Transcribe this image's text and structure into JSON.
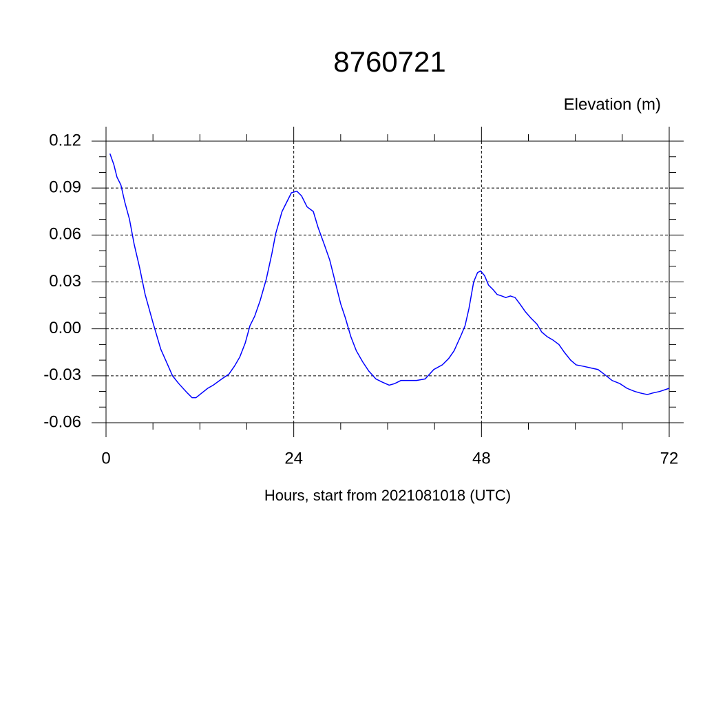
{
  "chart_data": {
    "type": "line",
    "title": "8760721",
    "y_label": "Elevation (m)",
    "x_label": "Hours, start from 2021081018 (UTC)",
    "xlim": [
      0,
      72
    ],
    "ylim": [
      -0.06,
      0.12
    ],
    "xticks": [
      0,
      24,
      48,
      72
    ],
    "yticks": [
      0.12,
      0.09,
      0.06,
      0.03,
      {
        "value": 0,
        "label": "0.00"
      },
      -0.03,
      -0.06
    ],
    "xminor_ticks": [
      6,
      12,
      18,
      30,
      36,
      42,
      54,
      60,
      66
    ],
    "yminor_ticks": [
      0.11,
      0.1,
      0.08,
      0.07,
      0.05,
      0.04,
      0.02,
      0.01,
      -0.01,
      -0.02,
      -0.04,
      -0.05
    ],
    "grid": true,
    "series": [
      {
        "color": "#0000ff",
        "x": [
          0.5,
          1,
          1.4,
          1.9,
          2.4,
          3,
          3.6,
          4.3,
          5,
          6,
          7,
          7.8,
          8.5,
          9.3,
          10.4,
          11,
          11.5,
          12,
          13,
          13.7,
          14.8,
          15.7,
          16.4,
          17.1,
          17.8,
          18.4,
          19,
          19.7,
          20.5,
          21.2,
          21.7,
          22.5,
          23,
          23.7,
          24.4,
          25,
          25.7,
          26.5,
          27.1,
          27.9,
          28.6,
          29.3,
          30,
          30.6,
          31.3,
          32,
          32.8,
          33.6,
          34.5,
          35.3,
          36.2,
          36.9,
          37.7,
          38.6,
          39.7,
          40.8,
          41.9,
          43,
          43.8,
          44.5,
          45.4,
          45.9,
          46.4,
          47,
          47.5,
          47.9,
          48.4,
          48.9,
          49.5,
          50,
          50.6,
          51.1,
          51.7,
          52.3,
          52.9,
          53.6,
          54.3,
          55.1,
          55.7,
          56.4,
          57.1,
          57.9,
          58.6,
          59.4,
          60.1,
          61.1,
          62,
          62.9,
          63.7,
          64.7,
          65.7,
          66.6,
          67.6,
          68.3,
          69.2,
          69.9,
          70.8,
          72
        ],
        "values": [
          0.112,
          0.105,
          0.097,
          0.092,
          0.081,
          0.07,
          0.054,
          0.039,
          0.022,
          0.004,
          -0.013,
          -0.022,
          -0.03,
          -0.035,
          -0.041,
          -0.044,
          -0.044,
          -0.042,
          -0.038,
          -0.036,
          -0.032,
          -0.029,
          -0.024,
          -0.018,
          -0.009,
          0.002,
          0.008,
          0.018,
          0.032,
          0.048,
          0.061,
          0.075,
          0.08,
          0.087,
          0.088,
          0.085,
          0.078,
          0.075,
          0.065,
          0.054,
          0.044,
          0.03,
          0.016,
          0.007,
          -0.005,
          -0.014,
          -0.021,
          -0.027,
          -0.032,
          -0.034,
          -0.036,
          -0.035,
          -0.033,
          -0.033,
          -0.033,
          -0.032,
          -0.026,
          -0.023,
          -0.019,
          -0.014,
          -0.004,
          0.002,
          0.013,
          0.03,
          0.036,
          0.037,
          0.034,
          0.028,
          0.025,
          0.022,
          0.021,
          0.02,
          0.021,
          0.02,
          0.016,
          0.011,
          0.007,
          0.003,
          -0.002,
          -0.005,
          -0.007,
          -0.01,
          -0.015,
          -0.02,
          -0.023,
          -0.024,
          -0.025,
          -0.026,
          -0.029,
          -0.033,
          -0.035,
          -0.038,
          -0.04,
          -0.041,
          -0.042,
          -0.041,
          -0.04,
          -0.038
        ]
      }
    ]
  }
}
